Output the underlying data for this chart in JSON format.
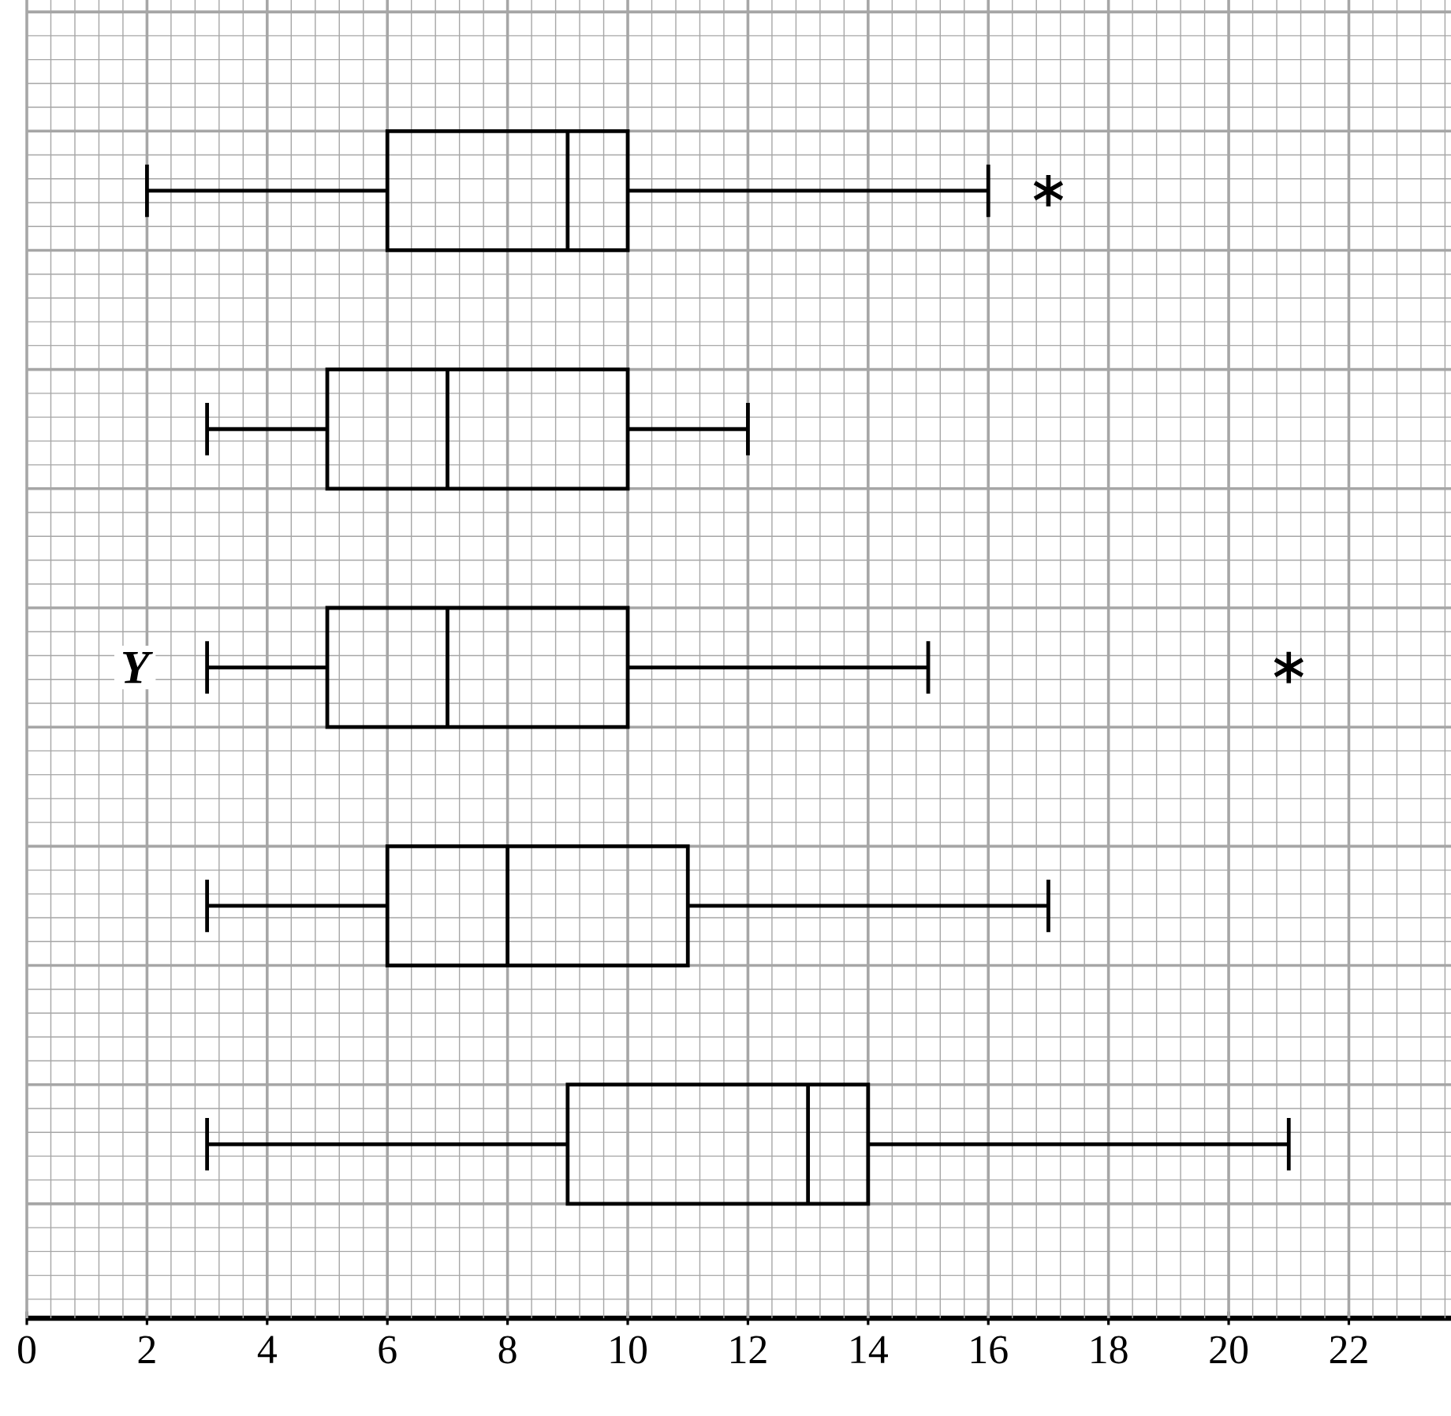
{
  "chart_data": {
    "type": "box",
    "orientation": "horizontal",
    "categories": [
      null,
      null,
      "Y",
      null,
      null
    ],
    "boxes": [
      {
        "low": 2,
        "q1": 6,
        "median": 9,
        "q3": 10,
        "high": 16,
        "outliers": [
          17
        ]
      },
      {
        "low": 3,
        "q1": 5,
        "median": 7,
        "q3": 10,
        "high": 12
      },
      {
        "low": 3,
        "q1": 5,
        "median": 7,
        "q3": 10,
        "high": 15,
        "outliers": [
          21
        ]
      },
      {
        "low": 3,
        "q1": 6,
        "median": 8,
        "q3": 11,
        "high": 17
      },
      {
        "low": 3,
        "q1": 9,
        "median": 13,
        "q3": 14,
        "high": 21
      }
    ],
    "xlim": [
      0,
      23.7
    ],
    "xticks": [
      0,
      2,
      4,
      6,
      8,
      10,
      12,
      14,
      16,
      18,
      20,
      22
    ],
    "grid": true
  }
}
